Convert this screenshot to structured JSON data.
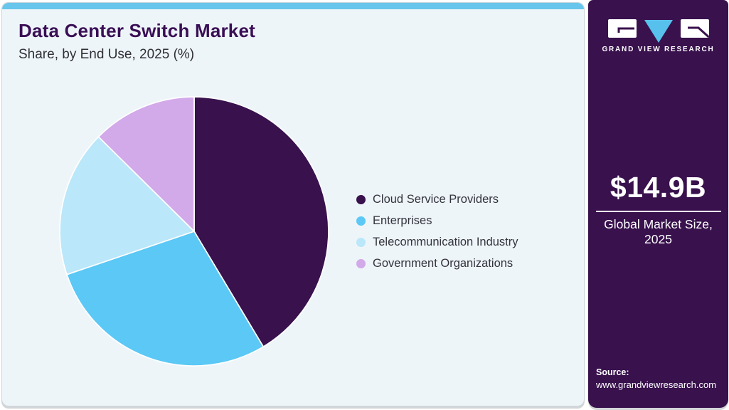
{
  "header": {
    "title": "Data Center Switch Market",
    "subtitle": "Share, by End Use, 2025 (%)"
  },
  "chart_data": {
    "type": "pie",
    "title": "Data Center Switch Market Share, by End Use, 2025 (%)",
    "start_angle_deg": 0,
    "direction": "clockwise",
    "data_labels_shown": false,
    "legend_position": "right",
    "slices": [
      {
        "label": "Cloud Service Providers",
        "value_pct": 41.4,
        "color": "#38114d"
      },
      {
        "label": "Enterprises",
        "value_pct": 28.4,
        "color": "#5bc8f5"
      },
      {
        "label": "Telecommunication Industry",
        "value_pct": 17.6,
        "color": "#bae7f9"
      },
      {
        "label": "Government Organizations",
        "value_pct": 12.6,
        "color": "#d2a9e9"
      }
    ]
  },
  "sidebar": {
    "brand": "GRAND VIEW RESEARCH",
    "market_size_value": "$14.9B",
    "market_size_caption": "Global Market Size, 2025",
    "source_label": "Source:",
    "source_url": "www.grandviewresearch.com"
  },
  "theme": {
    "top_bar": "#68c5eb",
    "card_bg": "#eef5f9",
    "title_color": "#3a0f55",
    "sidebar_bg": "#38114d",
    "logo_triangle": "#58c0ec",
    "pie_stroke": "#ffffff"
  }
}
